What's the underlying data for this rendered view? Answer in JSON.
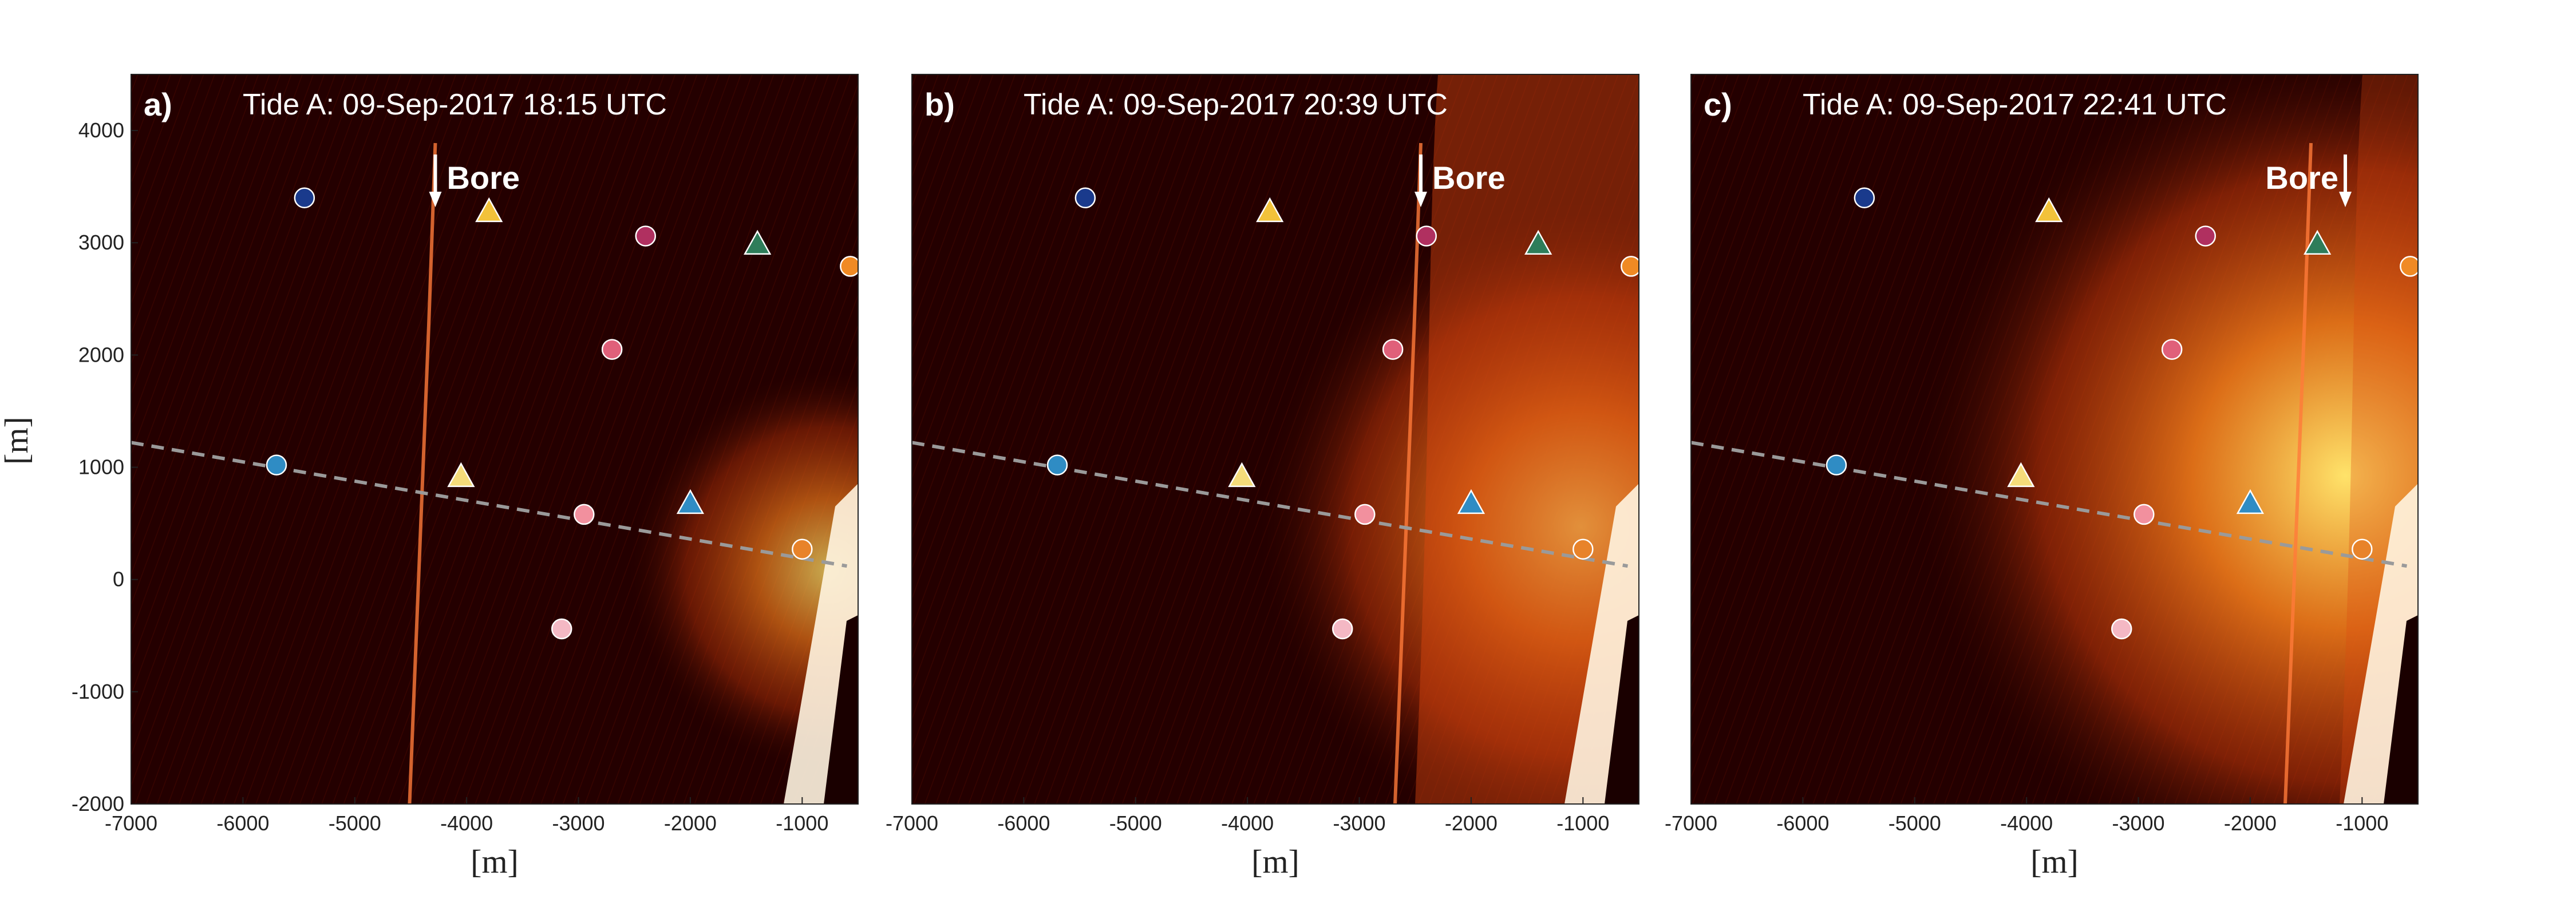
{
  "chart_data": {
    "type": "image-map",
    "xlim": [
      -7000,
      -500
    ],
    "ylim": [
      -2000,
      4500
    ],
    "xticks": [
      -7000,
      -6000,
      -5000,
      -4000,
      -3000,
      -2000,
      -1000
    ],
    "yticks": [
      -2000,
      -1000,
      0,
      1000,
      2000,
      3000,
      4000
    ],
    "xlabel": "[m]",
    "ylabel": "[m]",
    "transect": {
      "x": [
        -7000,
        -600
      ],
      "y": [
        1220,
        120
      ]
    },
    "instruments": [
      {
        "shape": "circle",
        "x": -5450,
        "y": 3400,
        "color": "#1a3a8c"
      },
      {
        "shape": "triangle",
        "x": -3800,
        "y": 3280,
        "color": "#f2c23a"
      },
      {
        "shape": "circle",
        "x": -2400,
        "y": 3060,
        "color": "#b03060"
      },
      {
        "shape": "triangle",
        "x": -1400,
        "y": 2990,
        "color": "#2e7d5a"
      },
      {
        "shape": "circle",
        "x": -570,
        "y": 2790,
        "color": "#f08a24"
      },
      {
        "shape": "circle",
        "x": -2700,
        "y": 2050,
        "color": "#e0607a"
      },
      {
        "shape": "circle",
        "x": -5700,
        "y": 1020,
        "color": "#2f8cc4"
      },
      {
        "shape": "triangle",
        "x": -4050,
        "y": 920,
        "color": "#f5dc7a"
      },
      {
        "shape": "triangle",
        "x": -2000,
        "y": 680,
        "color": "#2f8cc4"
      },
      {
        "shape": "circle",
        "x": -2950,
        "y": 580,
        "color": "#f2909e"
      },
      {
        "shape": "circle",
        "x": -1000,
        "y": 270,
        "color": "#e8832a"
      },
      {
        "shape": "circle",
        "x": -3150,
        "y": -440,
        "color": "#f4b8c4"
      }
    ],
    "panels": [
      {
        "letter": "a)",
        "title": "Tide A: 09-Sep-2017 18:15 UTC",
        "bore_label": "Bore",
        "bore_x": -4280
      },
      {
        "letter": "b)",
        "title": "Tide A: 09-Sep-2017 20:39 UTC",
        "bore_label": "Bore",
        "bore_x": -2450
      },
      {
        "letter": "c)",
        "title": "Tide A: 09-Sep-2017 22:41 UTC",
        "bore_label": "Bore",
        "bore_x": -1150
      }
    ]
  },
  "colors": {
    "background_dark": "#240000",
    "glow_mid": "#c83a0a",
    "glow_bright": "#ffe36a",
    "transect": "#9a9a9a",
    "marker_edge": "#ffffff"
  }
}
